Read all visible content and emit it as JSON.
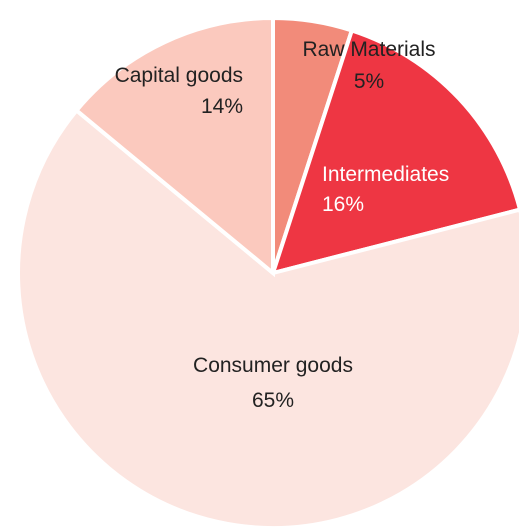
{
  "chart_data": {
    "type": "pie",
    "title": "",
    "start_angle_deg": 0,
    "direction": "clockwise",
    "slices": [
      {
        "label": "Raw Materials",
        "pct_label": "5%",
        "value": 5,
        "color": "#f28b7a",
        "text_color": "#222222"
      },
      {
        "label": "Intermediates",
        "pct_label": "16%",
        "value": 16,
        "color": "#ee3643",
        "text_color": "#ffffff"
      },
      {
        "label": "Consumer goods",
        "pct_label": "65%",
        "value": 65,
        "color": "#fce5e0",
        "text_color": "#222222"
      },
      {
        "label": "Capital goods",
        "pct_label": "14%",
        "value": 14,
        "color": "#fbc9be",
        "text_color": "#222222"
      }
    ]
  }
}
